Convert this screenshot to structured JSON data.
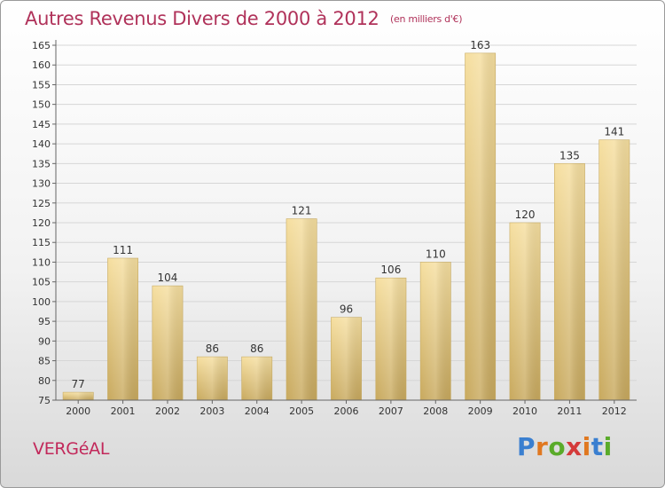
{
  "header": {
    "title": "Autres Revenus Divers de 2000 à 2012",
    "subtitle": "(en milliers d'€)"
  },
  "footer": {
    "place": "VERGéAL",
    "logo_text": "Proxiti",
    "logo_colors": [
      "#3a7fd0",
      "#e07820",
      "#5aab2a",
      "#d43a3a",
      "#e07820",
      "#3a7fd0",
      "#5aab2a"
    ]
  },
  "colors": {
    "title": "#b0325a",
    "bar_light": "#f6dfa0",
    "bar_dark": "#c8a95e",
    "grid": "#d6d6d6"
  },
  "chart_data": {
    "type": "bar",
    "title": "Autres Revenus Divers de 2000 à 2012",
    "subtitle": "(en milliers d'€)",
    "categories": [
      "2000",
      "2001",
      "2002",
      "2003",
      "2004",
      "2005",
      "2006",
      "2007",
      "2008",
      "2009",
      "2010",
      "2011",
      "2012"
    ],
    "values": [
      77,
      111,
      104,
      86,
      86,
      121,
      96,
      106,
      110,
      163,
      120,
      135,
      141
    ],
    "ylim": [
      75,
      165
    ],
    "yticks": [
      75,
      80,
      85,
      90,
      95,
      100,
      105,
      110,
      115,
      120,
      125,
      130,
      135,
      140,
      145,
      150,
      155,
      160,
      165
    ],
    "grid": true,
    "xlabel": "",
    "ylabel": ""
  }
}
